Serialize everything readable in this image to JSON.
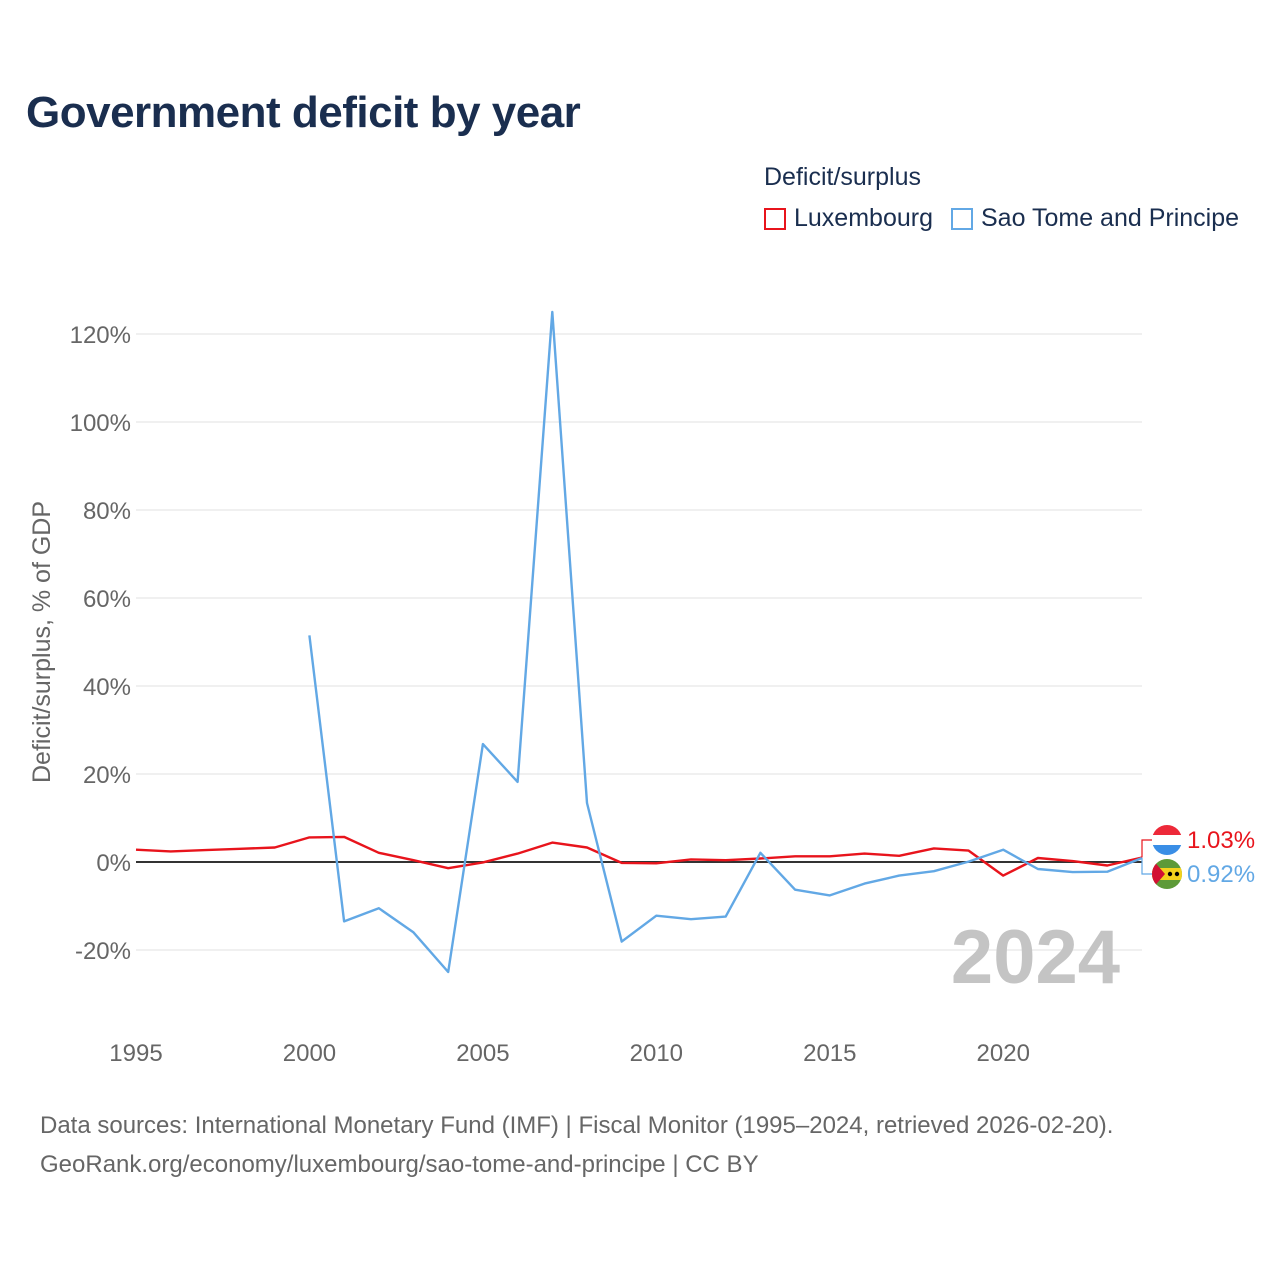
{
  "title": "Government deficit by year",
  "legend": {
    "title": "Deficit/surplus",
    "items": [
      {
        "label": "Luxembourg",
        "color": "#e8141c"
      },
      {
        "label": "Sao Tome and Principe",
        "color": "#62a8e5"
      }
    ]
  },
  "footer": {
    "line1": "Data sources: International Monetary Fund (IMF) | Fiscal Monitor (1995–2024, retrieved 2026-02-20).",
    "line2": "GeoRank.org/economy/luxembourg/sao-tome-and-principe | CC BY"
  },
  "year_watermark": "2024",
  "chart_data": {
    "type": "line",
    "title": "Government deficit by year",
    "xlabel": "",
    "ylabel": "Deficit/surplus, % of GDP",
    "xlim": [
      1995,
      2024
    ],
    "ylim": [
      -25,
      125
    ],
    "x_ticks": [
      1995,
      2000,
      2005,
      2010,
      2015,
      2020
    ],
    "y_ticks": [
      -20,
      0,
      20,
      40,
      60,
      80,
      100,
      120
    ],
    "y_tick_labels": [
      "-20%",
      "0%",
      "20%",
      "40%",
      "60%",
      "80%",
      "100%",
      "120%"
    ],
    "grid": true,
    "legend_position": "top-right",
    "series": [
      {
        "name": "Luxembourg",
        "color": "#e8141c",
        "x": [
          1995,
          1996,
          1997,
          1998,
          1999,
          2000,
          2001,
          2002,
          2003,
          2004,
          2005,
          2006,
          2007,
          2008,
          2009,
          2010,
          2011,
          2012,
          2013,
          2014,
          2015,
          2016,
          2017,
          2018,
          2019,
          2020,
          2021,
          2022,
          2023,
          2024
        ],
        "values": [
          2.8,
          2.4,
          2.7,
          3.0,
          3.3,
          5.6,
          5.7,
          2.1,
          0.4,
          -1.4,
          -0.1,
          1.9,
          4.4,
          3.3,
          -0.2,
          -0.3,
          0.6,
          0.4,
          0.8,
          1.3,
          1.3,
          1.9,
          1.4,
          3.1,
          2.6,
          -3.1,
          0.9,
          0.2,
          -0.8,
          1.03
        ],
        "end_label": "1.03%"
      },
      {
        "name": "Sao Tome and Principe",
        "color": "#62a8e5",
        "x": [
          2000,
          2001,
          2002,
          2003,
          2004,
          2005,
          2006,
          2007,
          2008,
          2009,
          2010,
          2011,
          2012,
          2013,
          2014,
          2015,
          2016,
          2017,
          2018,
          2019,
          2020,
          2021,
          2022,
          2023,
          2024
        ],
        "values": [
          51.5,
          -13.5,
          -10.5,
          -16.0,
          -25.0,
          26.8,
          18.2,
          125.0,
          13.4,
          -18.1,
          -12.2,
          -13.0,
          -12.4,
          2.1,
          -6.3,
          -7.6,
          -4.9,
          -3.1,
          -2.1,
          0.1,
          2.8,
          -1.6,
          -2.3,
          -2.2,
          0.92
        ],
        "end_label": "0.92%"
      }
    ]
  }
}
